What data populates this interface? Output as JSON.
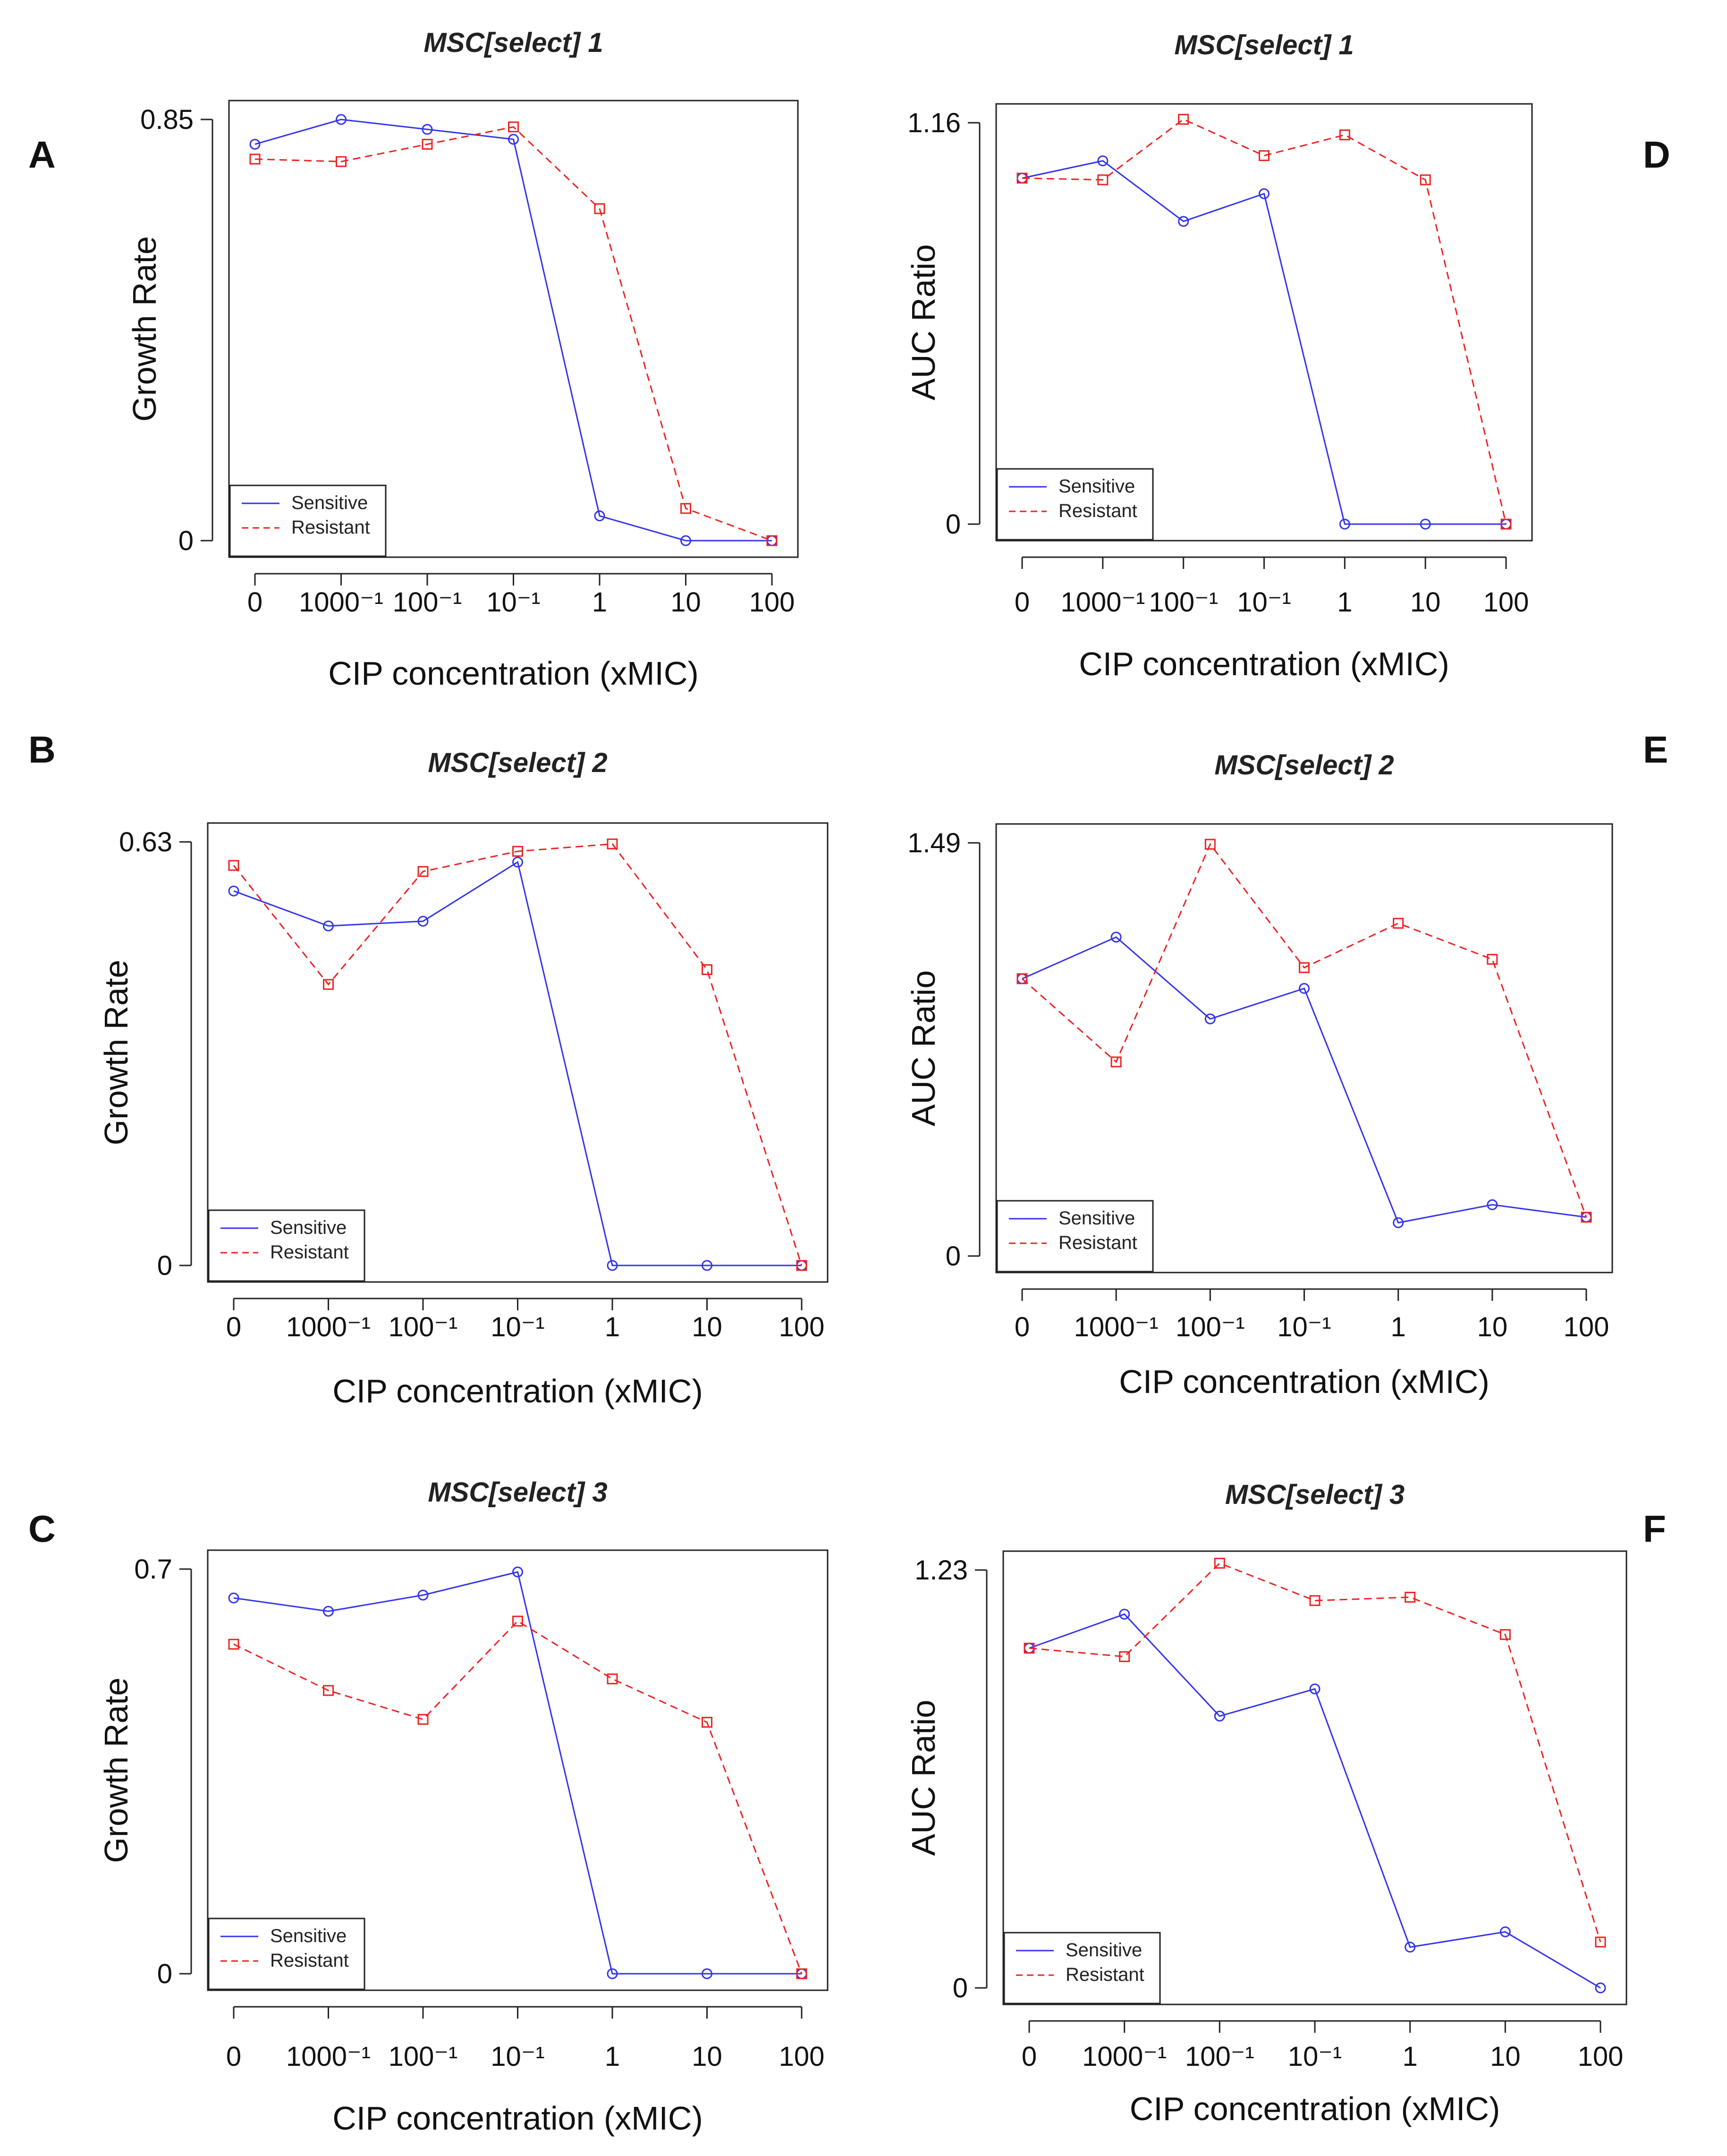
{
  "colors": {
    "sensitive": "#3333ee",
    "resistant": "#ee2222",
    "axis": "#222222"
  },
  "chart_data": [
    {
      "panel": "A",
      "type": "line",
      "title": "MSC[select] 1",
      "xlabel": "CIP concentration (xMIC)",
      "ylabel": "Growth Rate",
      "categories": [
        "0",
        "1000⁻¹",
        "100⁻¹",
        "10⁻¹",
        "1",
        "10",
        "100"
      ],
      "ylim": [
        0,
        0.85
      ],
      "yticks": [
        "0",
        "0.85"
      ],
      "yticks_values": [
        0,
        0.85
      ],
      "legend": [
        "Sensitive",
        "Resistant"
      ],
      "series": [
        {
          "name": "Sensitive",
          "values": [
            0.8,
            0.85,
            0.83,
            0.81,
            0.05,
            0.0,
            0.0
          ]
        },
        {
          "name": "Resistant",
          "values": [
            0.77,
            0.765,
            0.8,
            0.835,
            0.67,
            0.065,
            0.0
          ]
        }
      ]
    },
    {
      "panel": "D",
      "type": "line",
      "title": "MSC[select] 1",
      "xlabel": "CIP concentration (xMIC)",
      "ylabel": "AUC Ratio",
      "categories": [
        "0",
        "1000⁻¹",
        "100⁻¹",
        "10⁻¹",
        "1",
        "10",
        "100"
      ],
      "ylim": [
        0,
        1.16
      ],
      "yticks": [
        "0",
        "1.16"
      ],
      "yticks_values": [
        0,
        1.16
      ],
      "legend": [
        "Sensitive",
        "Resistant"
      ],
      "series": [
        {
          "name": "Sensitive",
          "values": [
            1.0,
            1.05,
            0.875,
            0.955,
            0.0,
            0.0,
            0.0
          ]
        },
        {
          "name": "Resistant",
          "values": [
            1.0,
            0.995,
            1.17,
            1.065,
            1.125,
            0.995,
            0.0
          ]
        }
      ]
    },
    {
      "panel": "B",
      "type": "line",
      "title": "MSC[select] 2",
      "xlabel": "CIP concentration (xMIC)",
      "ylabel": "Growth Rate",
      "categories": [
        "0",
        "1000⁻¹",
        "100⁻¹",
        "10⁻¹",
        "1",
        "10",
        "100"
      ],
      "ylim": [
        0,
        0.63
      ],
      "yticks": [
        "0",
        "0.63"
      ],
      "yticks_values": [
        0,
        0.63
      ],
      "legend": [
        "Sensitive",
        "Resistant"
      ],
      "series": [
        {
          "name": "Sensitive",
          "values": [
            0.557,
            0.505,
            0.512,
            0.6,
            0.0,
            0.0,
            0.0
          ]
        },
        {
          "name": "Resistant",
          "values": [
            0.595,
            0.418,
            0.586,
            0.616,
            0.627,
            0.44,
            0.0
          ]
        }
      ]
    },
    {
      "panel": "E",
      "type": "line",
      "title": "MSC[select] 2",
      "xlabel": "CIP concentration (xMIC)",
      "ylabel": "AUC Ratio",
      "categories": [
        "0",
        "1000⁻¹",
        "100⁻¹",
        "10⁻¹",
        "1",
        "10",
        "100"
      ],
      "ylim": [
        0,
        1.49
      ],
      "yticks": [
        "0",
        "1.49"
      ],
      "yticks_values": [
        0,
        1.49
      ],
      "legend": [
        "Sensitive",
        "Resistant"
      ],
      "series": [
        {
          "name": "Sensitive",
          "values": [
            1.0,
            1.15,
            0.855,
            0.965,
            0.12,
            0.185,
            0.14
          ]
        },
        {
          "name": "Resistant",
          "values": [
            1.0,
            0.7,
            1.485,
            1.04,
            1.2,
            1.07,
            0.14
          ]
        }
      ]
    },
    {
      "panel": "C",
      "type": "line",
      "title": "MSC[select] 3",
      "xlabel": "CIP concentration (xMIC)",
      "ylabel": "Growth Rate",
      "categories": [
        "0",
        "1000⁻¹",
        "100⁻¹",
        "10⁻¹",
        "1",
        "10",
        "100"
      ],
      "ylim": [
        0,
        0.7
      ],
      "yticks": [
        "0",
        "0.7"
      ],
      "yticks_values": [
        0,
        0.7
      ],
      "legend": [
        "Sensitive",
        "Resistant"
      ],
      "series": [
        {
          "name": "Sensitive",
          "values": [
            0.65,
            0.627,
            0.655,
            0.695,
            0.0,
            0.0,
            0.0
          ]
        },
        {
          "name": "Resistant",
          "values": [
            0.57,
            0.49,
            0.44,
            0.61,
            0.51,
            0.435,
            0.0
          ]
        }
      ]
    },
    {
      "panel": "F",
      "type": "line",
      "title": "MSC[select] 3",
      "xlabel": "CIP concentration (xMIC)",
      "ylabel": "AUC Ratio",
      "categories": [
        "0",
        "1000⁻¹",
        "100⁻¹",
        "10⁻¹",
        "1",
        "10",
        "100"
      ],
      "ylim": [
        0,
        1.23
      ],
      "yticks": [
        "0",
        "1.23"
      ],
      "yticks_values": [
        0,
        1.23
      ],
      "legend": [
        "Sensitive",
        "Resistant"
      ],
      "series": [
        {
          "name": "Sensitive",
          "values": [
            1.0,
            1.1,
            0.8,
            0.88,
            0.12,
            0.165,
            0.0
          ]
        },
        {
          "name": "Resistant",
          "values": [
            1.0,
            0.975,
            1.25,
            1.14,
            1.15,
            1.04,
            0.135
          ]
        }
      ]
    }
  ]
}
